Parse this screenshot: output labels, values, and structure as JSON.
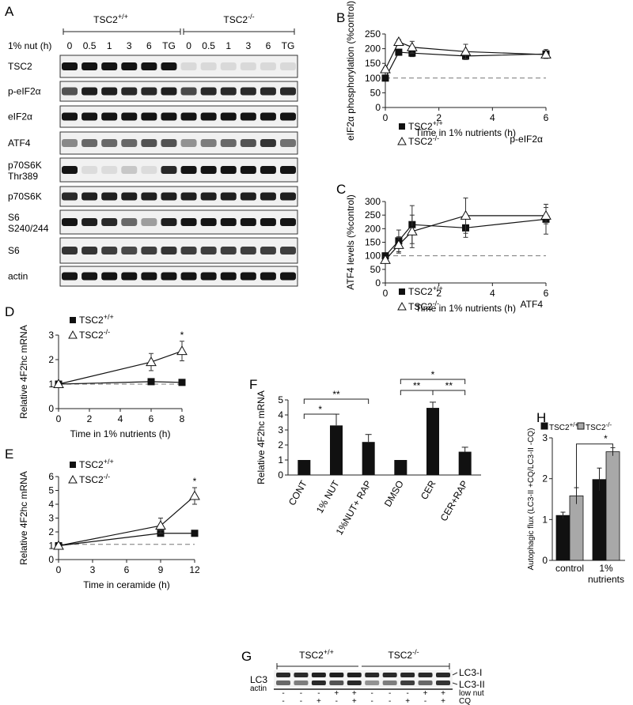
{
  "panels": {
    "A": "A",
    "B": "B",
    "C": "C",
    "D": "D",
    "E": "E",
    "F": "F",
    "G": "G",
    "H": "H"
  },
  "panel_a": {
    "group_left": "TSC2+/+",
    "group_right": "TSC2-/-",
    "row_label": "1% nut (h)",
    "lanes": [
      "0",
      "0.5",
      "1",
      "3",
      "6",
      "TG",
      "0",
      "0.5",
      "1",
      "3",
      "6",
      "TG"
    ],
    "blots": [
      "TSC2",
      "p-eIF2α",
      "eIF2α",
      "ATF4",
      "p70S6K Thr389",
      "p70S6K",
      "S6 S240/244",
      "S6",
      "actin"
    ]
  },
  "panel_g": {
    "group_left": "TSC2+/+",
    "group_right": "TSC2-/-",
    "blots": [
      "LC3",
      "actin"
    ],
    "band_labels": [
      "LC3-I",
      "LC3-II"
    ],
    "rows": [
      {
        "label": "low nut",
        "marks": [
          "-",
          "-",
          "-",
          "+",
          "+",
          "-",
          "-",
          "-",
          "+",
          "+"
        ]
      },
      {
        "label": "CQ",
        "marks": [
          "-",
          "-",
          "+",
          "-",
          "+",
          "-",
          "-",
          "+",
          "-",
          "+"
        ]
      }
    ]
  },
  "chart_data": [
    {
      "panel": "B",
      "type": "line",
      "title_corner": "p-eIF2α",
      "xlabel": "Time in 1% nutrients (h)",
      "ylabel": "eIF2α phosphorylation (%control)",
      "xlim": [
        0,
        6
      ],
      "ylim": [
        0,
        250
      ],
      "xticks": [
        "0",
        "2",
        "4",
        "6"
      ],
      "yticks": [
        "0",
        "50",
        "100",
        "150",
        "200",
        "250"
      ],
      "baseline": 100,
      "series": [
        {
          "name": "TSC2+/+",
          "marker": "square",
          "x": [
            0,
            0.5,
            1,
            3,
            6
          ],
          "y": [
            100,
            188,
            185,
            175,
            182
          ],
          "err": [
            0,
            5,
            12,
            12,
            15
          ]
        },
        {
          "name": "TSC2-/-",
          "marker": "triangle",
          "x": [
            0,
            0.5,
            1,
            3,
            6
          ],
          "y": [
            130,
            223,
            205,
            190,
            180
          ],
          "err": [
            6,
            8,
            20,
            25,
            8
          ]
        }
      ]
    },
    {
      "panel": "C",
      "type": "line",
      "title_corner": "ATF4",
      "xlabel": "Time in 1% nutrients (h)",
      "ylabel": "ATF4 levels (%control)",
      "xlim": [
        0,
        6
      ],
      "ylim": [
        0,
        300
      ],
      "xticks": [
        "0",
        "2",
        "4",
        "6"
      ],
      "yticks": [
        "0",
        "50",
        "100",
        "150",
        "200",
        "250",
        "300"
      ],
      "baseline": 100,
      "series": [
        {
          "name": "TSC2+/+",
          "marker": "square",
          "x": [
            0,
            0.5,
            1,
            3,
            6
          ],
          "y": [
            100,
            155,
            215,
            203,
            235
          ],
          "err": [
            0,
            40,
            70,
            35,
            55
          ]
        },
        {
          "name": "TSC2-/-",
          "marker": "triangle",
          "x": [
            0,
            0.5,
            1,
            3,
            6
          ],
          "y": [
            85,
            140,
            190,
            248,
            248
          ],
          "err": [
            12,
            30,
            60,
            65,
            30
          ]
        }
      ]
    },
    {
      "panel": "D",
      "type": "line",
      "xlabel": "Time in 1% nutrients (h)",
      "ylabel": "Relative 4F2hc mRNA",
      "xlim": [
        0,
        8
      ],
      "ylim": [
        0,
        3
      ],
      "xticks": [
        "0",
        "2",
        "4",
        "6",
        "8"
      ],
      "yticks": [
        "0",
        "1",
        "2",
        "3"
      ],
      "baseline": 1,
      "annotations": [
        "*"
      ],
      "series": [
        {
          "name": "TSC2+/+",
          "marker": "square",
          "x": [
            0,
            6,
            8
          ],
          "y": [
            1,
            1.1,
            1.07
          ],
          "err": [
            0,
            0.1,
            0.08
          ]
        },
        {
          "name": "TSC2-/-",
          "marker": "triangle",
          "x": [
            0,
            6,
            8
          ],
          "y": [
            1,
            1.9,
            2.35
          ],
          "err": [
            0,
            0.35,
            0.4
          ]
        }
      ]
    },
    {
      "panel": "E",
      "type": "line",
      "xlabel": "Time in ceramide (h)",
      "ylabel": "Relative 4F2hc mRNA",
      "xlim": [
        0,
        12
      ],
      "ylim": [
        0,
        6
      ],
      "xticks": [
        "0",
        "3",
        "6",
        "9",
        "12"
      ],
      "yticks": [
        "0",
        "1",
        "2",
        "3",
        "4",
        "5",
        "6"
      ],
      "baseline": 1.1,
      "annotations": [
        "*"
      ],
      "series": [
        {
          "name": "TSC2+/+",
          "marker": "square",
          "x": [
            0,
            9,
            12
          ],
          "y": [
            1,
            1.9,
            1.9
          ],
          "err": [
            0,
            0.15,
            0
          ]
        },
        {
          "name": "TSC2-/-",
          "marker": "triangle",
          "x": [
            0,
            9,
            12
          ],
          "y": [
            1,
            2.45,
            4.6
          ],
          "err": [
            0,
            0.55,
            0.6
          ]
        }
      ]
    },
    {
      "panel": "F",
      "type": "bar",
      "ylabel": "Relative 4F2hc mRNA",
      "ylim": [
        0,
        5
      ],
      "yticks": [
        "0",
        "1",
        "2",
        "3",
        "4",
        "5"
      ],
      "categories": [
        "CONT",
        "1% NUT",
        "1%NUT+ RAP",
        "DMSO",
        "CER",
        "CER+RAP"
      ],
      "values": [
        1,
        3.3,
        2.2,
        1,
        4.47,
        1.55
      ],
      "err": [
        0,
        0.75,
        0.5,
        0,
        0.38,
        0.3
      ],
      "significance": [
        "*",
        "**",
        "**",
        "*",
        "**"
      ]
    },
    {
      "panel": "H",
      "type": "bar",
      "ylabel": "Autophagic flux (LC3-II +CQ/LC3-II -CQ)",
      "ylim": [
        0,
        3
      ],
      "yticks": [
        "0",
        "1",
        "2",
        "3"
      ],
      "categories": [
        "control",
        "1% nutrients"
      ],
      "series": [
        {
          "name": "TSC2+/+",
          "color": "#111111",
          "values": [
            1.1,
            1.98
          ],
          "err": [
            0.08,
            0.28
          ]
        },
        {
          "name": "TSC2-/-",
          "color": "#a8a8a8",
          "values": [
            1.58,
            2.66
          ],
          "err": [
            0.2,
            0.1
          ]
        }
      ],
      "significance": [
        "*"
      ]
    }
  ]
}
